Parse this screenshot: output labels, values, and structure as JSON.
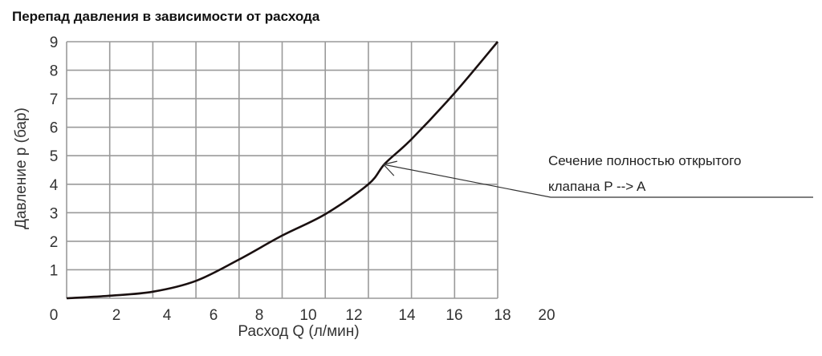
{
  "chart_data": {
    "type": "line",
    "title": "Перепад давления в зависимости от расхода",
    "xlabel": "Расход Q (л/мин)",
    "ylabel": "Давление p (бар)",
    "xlim": [
      0,
      18
    ],
    "ylim": [
      0,
      9
    ],
    "grid": true,
    "x_tick_labels": [
      "0",
      "2",
      "4",
      "6",
      "8",
      "10",
      "12",
      "14",
      "16",
      "18",
      "20"
    ],
    "y_tick_labels": [
      "1",
      "2",
      "3",
      "4",
      "5",
      "6",
      "7",
      "8",
      "9"
    ],
    "series": [
      {
        "x": [
          0,
          1.8,
          3.6,
          5.4,
          7.2,
          9.0,
          10.8,
          12.6,
          13.3,
          14.4,
          16.2,
          18
        ],
        "y": [
          0,
          0.09,
          0.23,
          0.61,
          1.36,
          2.2,
          2.95,
          4.0,
          4.73,
          5.58,
          7.2,
          9
        ],
        "color": "#1a1010"
      }
    ],
    "annotation": {
      "lines": [
        "Сечение полностью открытого",
        "клапана P --> A"
      ],
      "points_to": {
        "x": 13.2,
        "y": 4.75
      }
    }
  }
}
